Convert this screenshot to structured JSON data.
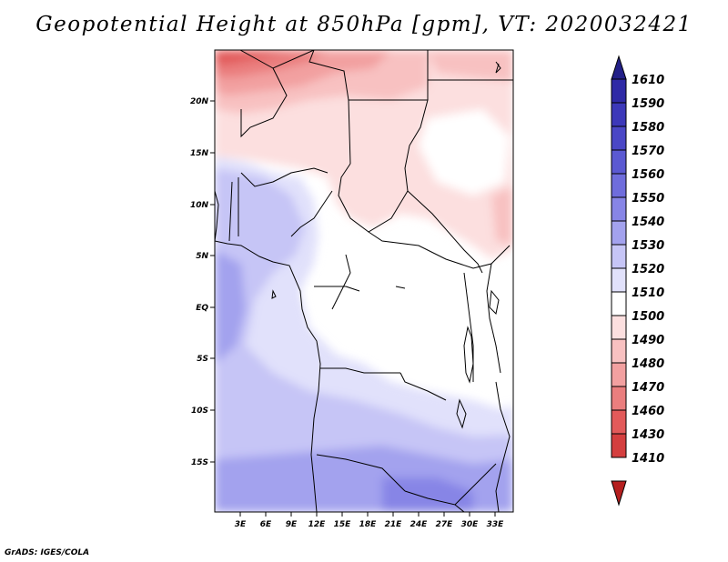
{
  "title": "Geopotential Height at 850hPa [gpm], VT: 2020032421",
  "credit": "GrADS: IGES/COLA",
  "map": {
    "variable": "Geopotential Height",
    "level": "850hPa",
    "units": "gpm",
    "valid_time": "2020032421",
    "lon_labels": [
      "3E",
      "6E",
      "9E",
      "12E",
      "15E",
      "18E",
      "21E",
      "24E",
      "27E",
      "30E",
      "33E"
    ],
    "lat_labels": [
      "20N",
      "15N",
      "10N",
      "5N",
      "EQ",
      "5S",
      "10S",
      "15S"
    ]
  },
  "colorbar": {
    "levels": [
      "1610",
      "1590",
      "1580",
      "1570",
      "1560",
      "1550",
      "1540",
      "1530",
      "1520",
      "1510",
      "1500",
      "1490",
      "1480",
      "1470",
      "1460",
      "1430",
      "1410"
    ],
    "colors": [
      "#232088",
      "#2f2aa6",
      "#3c38b9",
      "#4a47c6",
      "#5b59d2",
      "#6f6ddc",
      "#8785e6",
      "#a3a2ee",
      "#c6c5f6",
      "#e1e1fb",
      "#ffffff",
      "#fcdfdf",
      "#f8c1c1",
      "#f2a0a0",
      "#ea7e7e",
      "#e25a5a",
      "#d43f3f",
      "#b51f1f"
    ]
  }
}
